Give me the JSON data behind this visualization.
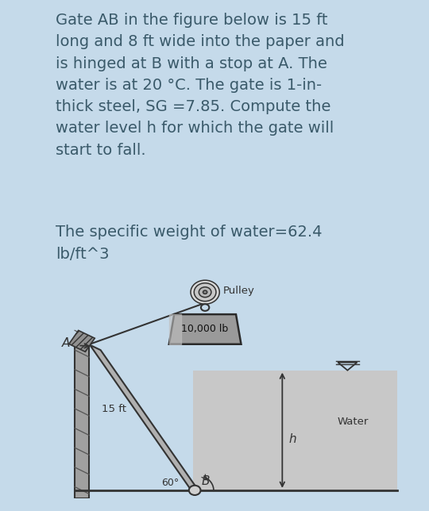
{
  "bg_color": "#c5daea",
  "diagram_bg": "#d4d4d4",
  "water_color": "#c2c2c2",
  "text_color": "#3a5a6a",
  "title_text": "Gate AB in the figure below is 15 ft\nlong and 8 ft wide into the paper and\nis hinged at B with a stop at A. The\nwater is at 20 °C. The gate is 1-in-\nthick steel, SG =7.85. Compute the\nwater level h for which the gate will\nstart to fall.",
  "subtitle_text": "The specific weight of water=62.4\nlb/ft^3",
  "title_fontsize": 14.0,
  "subtitle_fontsize": 14.0,
  "pulley_label": "Pulley",
  "weight_label": "10,000 lb",
  "water_label": "Water",
  "h_label": "h",
  "ft_label": "15 ft",
  "angle_label": "60°",
  "A_label": "A",
  "B_label": "B"
}
